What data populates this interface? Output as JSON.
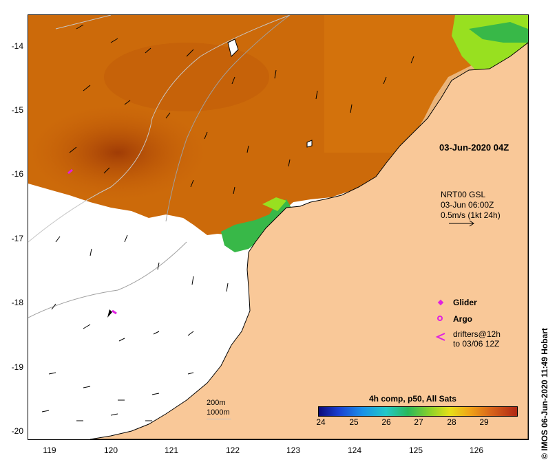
{
  "axes": {
    "y_ticks": [
      "-14",
      "-15",
      "-16",
      "-17",
      "-18",
      "-19",
      "-20"
    ],
    "x_ticks": [
      "119",
      "120",
      "121",
      "122",
      "123",
      "124",
      "125",
      "126"
    ]
  },
  "annotations": {
    "timestamp": "03-Jun-2020 04Z",
    "current_model": "NRT00 GSL",
    "current_time": "03-Jun 06:00Z",
    "current_scale": "0.5m/s (1kt 24h)",
    "scale_200": "200m",
    "scale_1000": "1000m"
  },
  "legend": {
    "glider": "Glider",
    "argo": "Argo",
    "drifters_line1": "drifters@12h",
    "drifters_line2": "to 03/06 12Z",
    "glider_color": "#e020e0",
    "argo_color": "#e020e0"
  },
  "colorbar": {
    "title": "4h comp, p50, All Sats",
    "ticks": [
      "24",
      "25",
      "26",
      "27",
      "28",
      "29"
    ]
  },
  "credit": "© IMOS 06-Jun-2020 11:49 Hobart",
  "colors": {
    "land": "#f9c898",
    "sst_warm": "#c86008",
    "sst_mid": "#d8780e",
    "sst_hot": "#a84006",
    "sst_green": "#38b848",
    "sst_lime": "#98e020"
  }
}
